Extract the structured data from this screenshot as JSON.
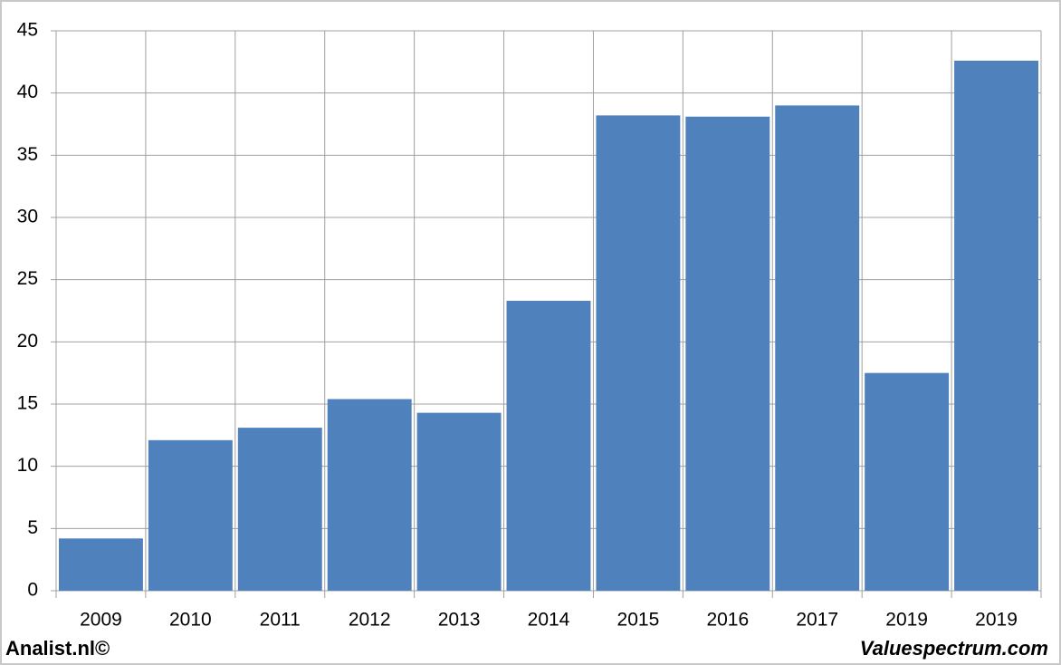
{
  "chart_data": {
    "type": "bar",
    "categories": [
      "2009",
      "2010",
      "2011",
      "2012",
      "2013",
      "2014",
      "2015",
      "2016",
      "2017",
      "2019",
      "2019"
    ],
    "values": [
      4.2,
      12.1,
      13.1,
      15.4,
      14.3,
      23.3,
      38.2,
      38.1,
      39.0,
      17.5,
      42.6
    ],
    "color": "#4f81bd",
    "ylim": [
      0,
      45
    ],
    "yticks": [
      0,
      5,
      10,
      15,
      20,
      25,
      30,
      35,
      40,
      45
    ],
    "grid": true,
    "footer_left": "Analist.nl©",
    "footer_right": "Valuespectrum.com"
  }
}
